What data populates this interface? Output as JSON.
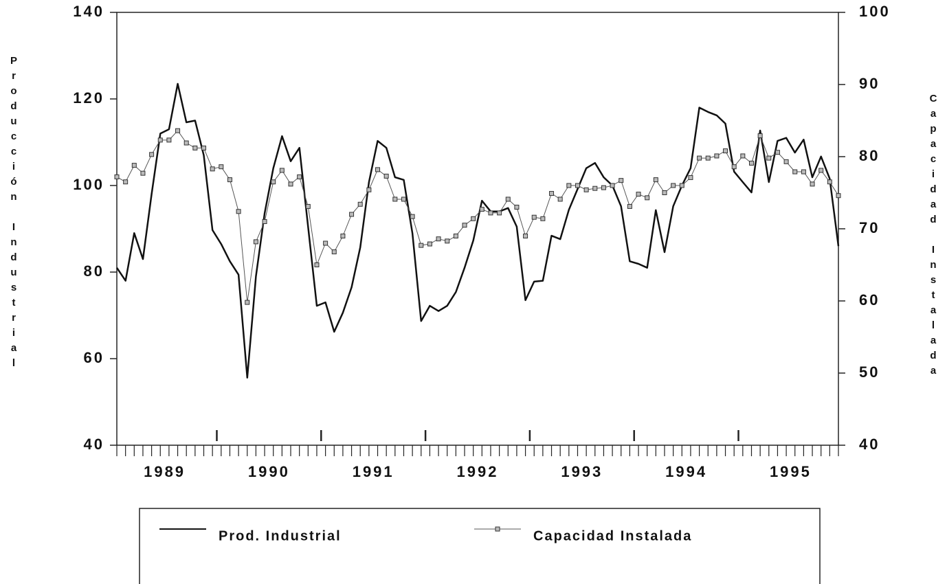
{
  "chart_data": {
    "type": "line",
    "ylabel": "Producción Industrial",
    "y2label": "Capacidad Instalada",
    "categories": [
      null,
      null,
      null,
      null,
      null,
      null,
      "1989",
      null,
      null,
      null,
      null,
      null,
      null,
      null,
      null,
      null,
      null,
      null,
      "1990",
      null,
      null,
      null,
      null,
      null,
      null,
      null,
      null,
      null,
      null,
      null,
      "1991",
      null,
      null,
      null,
      null,
      null,
      null,
      null,
      null,
      null,
      null,
      null,
      "1992",
      null,
      null,
      null,
      null,
      null,
      null,
      null,
      null,
      null,
      null,
      null,
      "1993",
      null,
      null,
      null,
      null,
      null,
      null,
      null,
      null,
      null,
      null,
      null,
      "1994",
      null,
      null,
      null,
      null,
      null,
      null,
      null,
      null,
      null,
      null,
      null,
      "1995",
      null,
      null,
      null,
      null,
      null
    ],
    "series": [
      {
        "name": "Prod. Industrial",
        "color": "#111111",
        "values": [
          81,
          78,
          89,
          83,
          98,
          112,
          113,
          123.5,
          114.6,
          115,
          107,
          89.7,
          86.5,
          82.5,
          79.4,
          55.6,
          79,
          93.6,
          104,
          111.4,
          105.6,
          108.7,
          90.5,
          72.2,
          73,
          66.2,
          70.6,
          76.5,
          85.7,
          100.8,
          110.3,
          108.7,
          101.9,
          101.3,
          89,
          68.7,
          72.2,
          71,
          72.2,
          75.4,
          81,
          87.3,
          96.5,
          94,
          94,
          94.8,
          90.5,
          73.5,
          77.8,
          78,
          88.4,
          87.6,
          94.4,
          99.2,
          104,
          105.2,
          101.9,
          100,
          95.2,
          82.5,
          81.9,
          81,
          94.3,
          84.6,
          95.2,
          100,
          104,
          118,
          117,
          116.2,
          114.3,
          103.2,
          100.8,
          98.4,
          112.7,
          100.8,
          110.3,
          111,
          107.6,
          110.6,
          101.9,
          106.7,
          101.6,
          86
        ]
      },
      {
        "name": "Capacidad Instalada",
        "color": "#555555",
        "axis": "y2",
        "values": [
          77.2,
          76.5,
          78.8,
          77.7,
          80.3,
          82.3,
          82.3,
          83.6,
          81.9,
          81.2,
          81.2,
          78.3,
          78.6,
          76.8,
          72.4,
          59.8,
          68.2,
          71,
          76.5,
          78.1,
          76.2,
          77.2,
          73.1,
          65,
          68,
          66.8,
          69,
          72,
          73.4,
          75.4,
          78.2,
          77.3,
          74.1,
          74.1,
          71.7,
          67.7,
          67.9,
          68.6,
          68.3,
          69,
          70.5,
          71.4,
          72.7,
          72.2,
          72.2,
          74.1,
          73,
          69,
          71.6,
          71.4,
          74.9,
          74.1,
          76,
          76,
          75.4,
          75.6,
          75.7,
          76,
          76.7,
          73.1,
          74.8,
          74.3,
          76.8,
          75,
          76,
          76,
          77.1,
          79.8,
          79.8,
          80.1,
          80.8,
          78.6,
          80.1,
          79.1,
          82.9,
          79.8,
          80.6,
          79.3,
          77.9,
          77.9,
          76.2,
          78.1,
          76.5,
          74.6
        ]
      }
    ],
    "ylim": [
      40,
      140
    ],
    "yticks": [
      40,
      60,
      80,
      100,
      120,
      140
    ],
    "y2lim": [
      40,
      100
    ],
    "y2ticks": [
      40,
      50,
      60,
      70,
      80,
      90,
      100
    ]
  }
}
